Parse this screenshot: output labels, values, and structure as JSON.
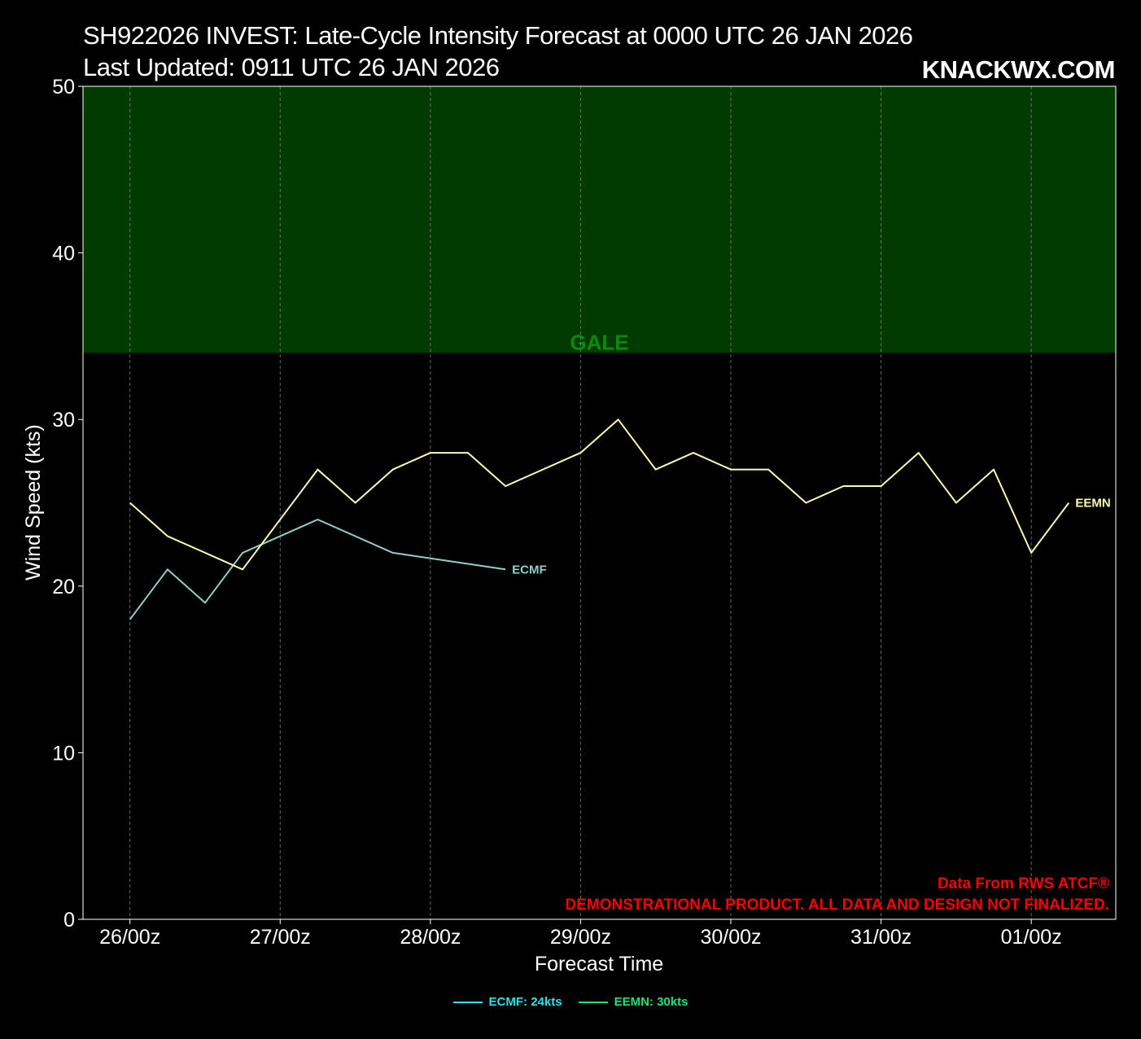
{
  "title_line1": "SH922026 INVEST: Late-Cycle Intensity Forecast at 0000 UTC 26 JAN 2026",
  "title_line2": "Last Updated: 0911 UTC 26 JAN 2026",
  "brand": "KNACKWX.COM",
  "footer_source": "Data From RWS ATCF®",
  "footer_disclaimer": "DEMONSTRATIONAL PRODUCT. ALL DATA AND DESIGN NOT FINALIZED.",
  "colors": {
    "background": "#000000",
    "gale_band": "#013b00",
    "gale_label": "#0a8a0a",
    "ecmf": "#8fd1c8",
    "eemn": "#fdfbb0",
    "legend_ecmf": "#2fe0e8",
    "legend_eemn": "#22e07a",
    "footer": "#ff0000",
    "grid": "#888888"
  },
  "legend": [
    {
      "label": "ECMF: 24kts",
      "color": "#2fe0e8"
    },
    {
      "label": "EEMN: 30kts",
      "color": "#22e07a"
    }
  ],
  "chart_data": {
    "type": "line",
    "xlabel": "Forecast Time",
    "ylabel": "Wind Speed (kts)",
    "ylim": [
      0,
      50
    ],
    "xlim_hours": [
      -7.5,
      157.5
    ],
    "yticks": [
      0,
      10,
      20,
      30,
      40,
      50
    ],
    "xticks": [
      {
        "hour": 0,
        "label": "26/00z"
      },
      {
        "hour": 24,
        "label": "27/00z"
      },
      {
        "hour": 48,
        "label": "28/00z"
      },
      {
        "hour": 72,
        "label": "29/00z"
      },
      {
        "hour": 96,
        "label": "30/00z"
      },
      {
        "hour": 120,
        "label": "31/00z"
      },
      {
        "hour": 144,
        "label": "01/00z"
      }
    ],
    "grid": "vertical-dashed",
    "bands": [
      {
        "label": "GALE",
        "from": 34,
        "to": 50
      }
    ],
    "series": [
      {
        "name": "ECMF",
        "x_hours": [
          0,
          6,
          12,
          18,
          30,
          42,
          60
        ],
        "values": [
          18,
          21,
          19,
          22,
          24,
          22,
          21
        ]
      },
      {
        "name": "EEMN",
        "x_hours": [
          0,
          6,
          18,
          30,
          36,
          42,
          48,
          54,
          60,
          72,
          78,
          84,
          90,
          96,
          102,
          108,
          114,
          120,
          126,
          132,
          138,
          144,
          150
        ],
        "values": [
          25,
          23,
          21,
          27,
          25,
          27,
          28,
          28,
          26,
          28,
          30,
          27,
          28,
          27,
          27,
          25,
          26,
          26,
          28,
          25,
          27,
          22,
          25
        ]
      }
    ]
  }
}
